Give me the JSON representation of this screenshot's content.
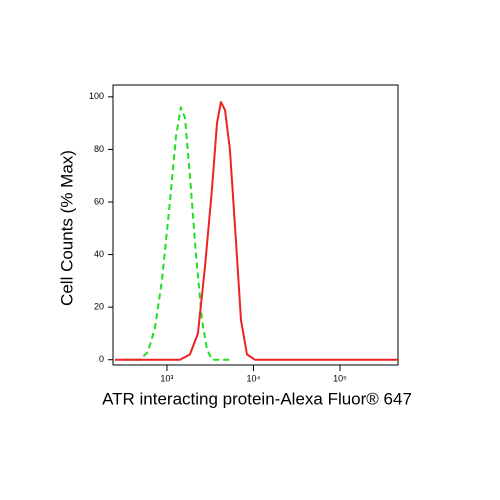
{
  "chart_data": {
    "type": "line",
    "x_label": "ATR interacting protein-Alexa Fluor® 647",
    "y_label": "Cell Counts (% Max)",
    "xscale": "log",
    "xlim": [
      238,
      468000
    ],
    "ylim": [
      -2,
      104.5
    ],
    "xticks": [
      {
        "value": 1000,
        "label": "10³"
      },
      {
        "value": 10000,
        "label": "10⁴"
      },
      {
        "value": 100000,
        "label": "10⁵"
      }
    ],
    "yticks": [
      0,
      20,
      40,
      60,
      80,
      100
    ],
    "series": [
      {
        "color": "#22dd22",
        "dash": true,
        "x": [
          327,
          488,
          603,
          726,
          875,
          1083,
          1271,
          1451,
          1616,
          1844,
          2165,
          2540,
          2898,
          3313,
          5346
        ],
        "values": [
          0,
          0,
          3,
          12,
          30,
          60,
          85,
          96,
          92,
          70,
          40,
          15,
          4,
          0,
          0
        ]
      },
      {
        "color": "#ee2222",
        "dash": false,
        "x": [
          251,
          1413,
          1844,
          2282,
          2748,
          3313,
          3785,
          4207,
          4688,
          5346,
          6281,
          7168,
          8407,
          10400,
          58700,
          468000
        ],
        "values": [
          0,
          0,
          2,
          10,
          35,
          65,
          90,
          98,
          95,
          80,
          45,
          15,
          2,
          0,
          0,
          0
        ]
      }
    ]
  }
}
